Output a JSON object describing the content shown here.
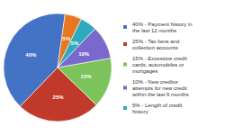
{
  "chart_data": {
    "type": "pie",
    "categories": [
      "40% - Payment history in\nthe last 12 months",
      "25% - Tax liens and\ncollection accounts",
      "15% - Excessive credit\ncards, automobiles or\nmortgages",
      "10% - New creditor\nattempts for new credit\nwithin the last 6 months",
      "5% - Length of credit\nhistory",
      null
    ],
    "values": [
      40,
      25,
      15,
      10,
      5,
      5
    ],
    "value_labels": [
      "40%",
      "25%",
      "15%",
      "10%",
      "5%",
      "5%"
    ],
    "colors": [
      "#4472C4",
      "#C0392B",
      "#7DC35B",
      "#7B68CC",
      "#2EAABE",
      "#E87722"
    ],
    "data_labels": true,
    "legend": "right"
  }
}
